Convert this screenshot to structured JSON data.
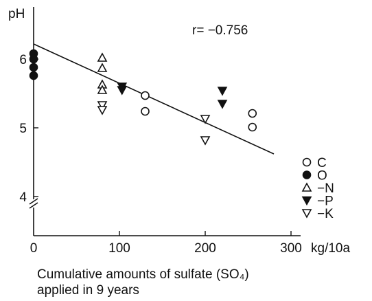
{
  "chart_data": {
    "type": "scatter",
    "ylabel": "pH",
    "xunit": "kg/10a",
    "xticks": [
      0,
      100,
      200,
      300
    ],
    "yticks": [
      4,
      5,
      6
    ],
    "xlim": [
      0,
      300
    ],
    "ylim": [
      3.6,
      6.8
    ],
    "y_axis_break": true,
    "annotation": "r= −0.756",
    "regression": {
      "x": [
        0,
        280
      ],
      "y": [
        6.22,
        4.62
      ]
    },
    "legend_position": "right",
    "series": [
      {
        "name": "C",
        "marker": "circle-open",
        "points": [
          [
            130,
            5.47
          ],
          [
            130,
            5.24
          ],
          [
            255,
            5.21
          ],
          [
            255,
            5.01
          ]
        ]
      },
      {
        "name": "O",
        "marker": "circle-filled",
        "points": [
          [
            0,
            6.08
          ],
          [
            0,
            6.0
          ],
          [
            0,
            5.88
          ],
          [
            0,
            5.76
          ]
        ]
      },
      {
        "name": "−N",
        "marker": "triangle-up-open",
        "points": [
          [
            80,
            6.02
          ],
          [
            80,
            5.87
          ],
          [
            80,
            5.63
          ],
          [
            80,
            5.55
          ]
        ]
      },
      {
        "name": "−P",
        "marker": "triangle-down-filled",
        "points": [
          [
            103,
            5.6
          ],
          [
            103,
            5.55
          ],
          [
            220,
            5.54
          ],
          [
            220,
            5.35
          ]
        ]
      },
      {
        "name": "−K",
        "marker": "triangle-down-open",
        "points": [
          [
            80,
            5.33
          ],
          [
            80,
            5.26
          ],
          [
            200,
            5.13
          ],
          [
            200,
            4.82
          ]
        ]
      }
    ]
  },
  "caption_lines": [
    "Cumulative amounts of sulfate (SO₄)",
    "applied in 9 years"
  ]
}
